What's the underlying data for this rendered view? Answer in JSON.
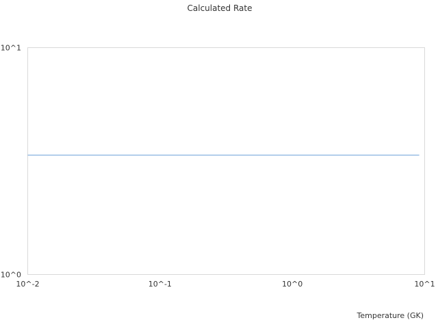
{
  "chart_data": {
    "type": "line",
    "title": "Calculated Rate",
    "xlabel": "Temperature (GK)",
    "ylabel": "",
    "xscale": "log",
    "yscale": "log",
    "xlim": [
      0.01,
      10
    ],
    "ylim": [
      1,
      10
    ],
    "xticks": [
      {
        "value": 0.01,
        "label": "10^-2"
      },
      {
        "value": 0.1,
        "label": "10^-1"
      },
      {
        "value": 1,
        "label": "10^0"
      },
      {
        "value": 10,
        "label": "10^1"
      }
    ],
    "yticks": [
      {
        "value": 1,
        "label": "10^0"
      },
      {
        "value": 10,
        "label": "10^1"
      }
    ],
    "grid": false,
    "series": [
      {
        "color": "#6a9fd8",
        "x": [
          0.01,
          9.1
        ],
        "y": [
          3.36,
          3.36
        ]
      }
    ]
  }
}
